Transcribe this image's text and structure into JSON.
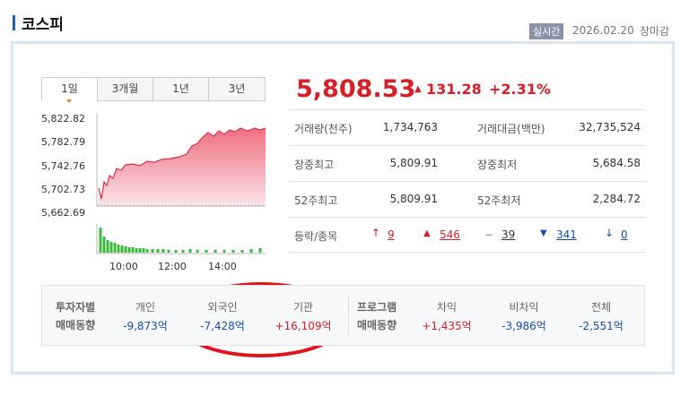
{
  "header": {
    "title": "코스피",
    "badge": "실시간",
    "date": "2026.02.20",
    "status": "장마감"
  },
  "tabs": [
    "1일",
    "3개월",
    "1년",
    "3년"
  ],
  "mini_chart": {
    "yticks": [
      "5,822.82",
      "5,782.79",
      "5,742.76",
      "5,702.73",
      "5,662.69"
    ],
    "xticks": [
      "10:00",
      "12:00",
      "14:00"
    ]
  },
  "quote": {
    "price": "5,808.53",
    "change": "131.28",
    "change_pct": "+2.31%"
  },
  "stats": [
    [
      "거래량(천주)",
      "1,734,763",
      "거래대금(백만)",
      "32,735,524"
    ],
    [
      "장중최고",
      "5,809.91",
      "장중최저",
      "5,684.58"
    ],
    [
      "52주최고",
      "5,809.91",
      "52주최저",
      "2,284.72"
    ]
  ],
  "breadth": {
    "label": "등락/종목",
    "upper_limit": "9",
    "up": "546",
    "flat": "39",
    "down": "341",
    "lower_limit": "0"
  },
  "investors": {
    "label": [
      "투자자별",
      "매매동향"
    ],
    "items": [
      {
        "name": "개인",
        "value": "-9,873억"
      },
      {
        "name": "외국인",
        "value": "-7,428억"
      },
      {
        "name": "기관",
        "value": "+16,109억"
      }
    ]
  },
  "program": {
    "label": [
      "프로그램",
      "매매동향"
    ],
    "items": [
      {
        "name": "차익",
        "value": "+1,435억"
      },
      {
        "name": "비차익",
        "value": "-3,986억"
      },
      {
        "name": "전체",
        "value": "-2,551억"
      }
    ]
  }
}
